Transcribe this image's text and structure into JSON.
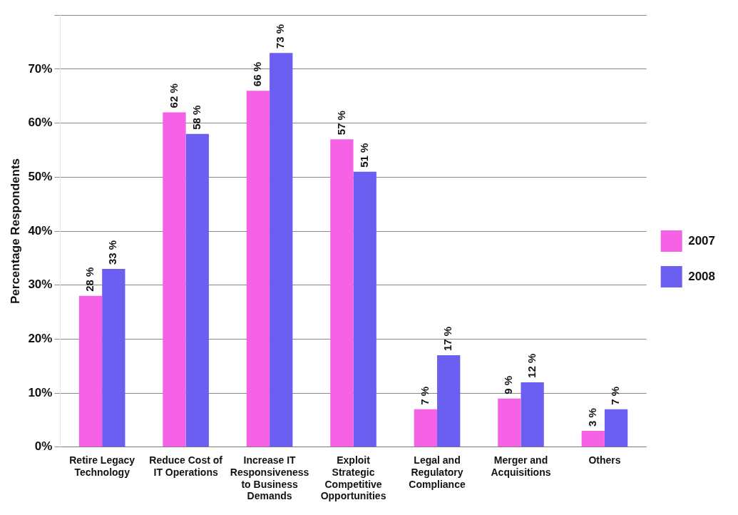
{
  "chart_data": {
    "type": "bar",
    "ylabel": "Percentage Respondents",
    "categories": [
      "Retire Legacy Technology",
      "Reduce Cost of IT Operations",
      "Increase IT Responsiveness to Business Demands",
      "Exploit Strategic Competitive Opportunities",
      "Legal and Regulatory Compliance",
      "Merger and Acquisitions",
      "Others"
    ],
    "series": [
      {
        "name": "2007",
        "color": "#f562e6",
        "values": [
          28,
          62,
          66,
          57,
          7,
          9,
          3
        ],
        "value_labels": [
          "28 %",
          "62 %",
          "66 %",
          "57 %",
          "7 %",
          "9 %",
          "3 %"
        ]
      },
      {
        "name": "2008",
        "color": "#6a5ff0",
        "values": [
          33,
          58,
          73,
          51,
          17,
          12,
          7
        ],
        "value_labels": [
          "33 %",
          "58 %",
          "73 %",
          "51 %",
          "17 %",
          "12 %",
          "7 %"
        ]
      }
    ],
    "ylim": [
      0,
      80
    ],
    "yticks": [
      {
        "value": 0,
        "label": "0%"
      },
      {
        "value": 10,
        "label": "10%"
      },
      {
        "value": 20,
        "label": "20%"
      },
      {
        "value": 30,
        "label": "30%"
      },
      {
        "value": 40,
        "label": "40%"
      },
      {
        "value": 50,
        "label": "50%"
      },
      {
        "value": 60,
        "label": "60%"
      },
      {
        "value": 70,
        "label": "70%"
      },
      {
        "value": 80,
        "label": null
      }
    ],
    "grid": "y",
    "legend": "right"
  }
}
